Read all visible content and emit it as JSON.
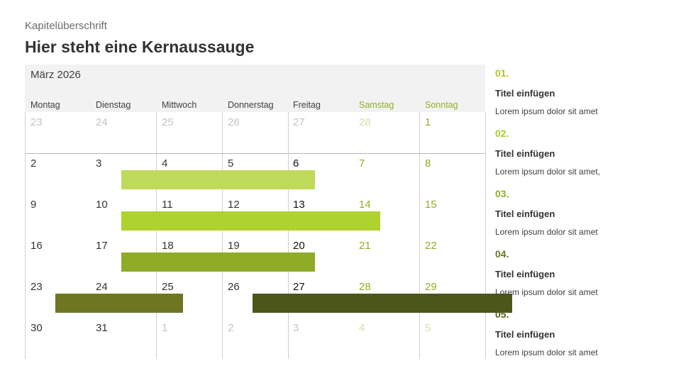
{
  "page": {
    "chapter": "Kapitelüberschrift",
    "headline": "Hier steht eine Kernaussauge"
  },
  "calendar": {
    "month_label": "März 2026",
    "weekdays": [
      "Montag",
      "Dienstag",
      "Mittwoch",
      "Donnerstag",
      "Freitag",
      "Samstag",
      "Sonntag"
    ],
    "weeks": [
      [
        "23",
        "24",
        "25",
        "26",
        "27",
        "28",
        "1"
      ],
      [
        "2",
        "3",
        "4",
        "5",
        "6",
        "7",
        "8"
      ],
      [
        "9",
        "10",
        "11",
        "12",
        "13",
        "14",
        "15"
      ],
      [
        "16",
        "17",
        "18",
        "19",
        "20",
        "21",
        "22"
      ],
      [
        "23",
        "24",
        "25",
        "26",
        "27",
        "28",
        "29"
      ],
      [
        "30",
        "31",
        "1",
        "2",
        "3",
        "4",
        "5"
      ]
    ],
    "colors": {
      "weekend": "#8eb021",
      "bar_1": "#bfda5a",
      "bar_2": "#aed22e",
      "bar_3": "#8fab27",
      "bar_4": "#6f7622",
      "bar_5": "#4d561a"
    },
    "events": [
      {
        "id": "01",
        "start": "2026-03-03",
        "end": "2026-03-05"
      },
      {
        "id": "02",
        "start": "2026-03-10",
        "end": "2026-03-13"
      },
      {
        "id": "03",
        "start": "2026-03-17",
        "end": "2026-03-19"
      },
      {
        "id": "04",
        "start": "2026-03-23",
        "end": "2026-03-24"
      },
      {
        "id": "05",
        "start": "2026-03-26",
        "end": "2026-03-29"
      }
    ]
  },
  "legend": [
    {
      "number": "01.",
      "title": "Titel einfügen",
      "text": "Lorem ipsum dolor sit amet",
      "color": "#a9cc29"
    },
    {
      "number": "02.",
      "title": "Titel einfügen",
      "text": "Lorem ipsum dolor sit amet,",
      "color": "#a9cc29"
    },
    {
      "number": "03.",
      "title": "Titel einfügen",
      "text": "Lorem ipsum dolor sit amet",
      "color": "#8eb021"
    },
    {
      "number": "04.",
      "title": "Titel einfügen",
      "text": "Lorem ipsum dolor sit amet",
      "color": "#6f7622"
    },
    {
      "number": "05.",
      "title": "Titel einfügen",
      "text": "Lorem ipsum dolor sit amet",
      "color": "#556018"
    }
  ]
}
